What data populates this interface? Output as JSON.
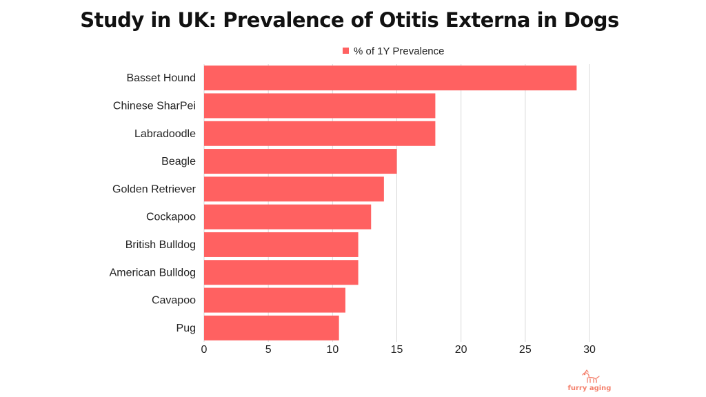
{
  "title": "Study in UK: Prevalence of Otitis Externa in Dogs",
  "brand": {
    "name": "furry aging",
    "color": "#f4806c",
    "icon": "dog-icon"
  },
  "chart_data": {
    "type": "bar",
    "orientation": "horizontal",
    "title": "Study in UK: Prevalence of Otitis Externa in Dogs",
    "categories": [
      "Basset Hound",
      "Chinese SharPei",
      "Labradoodle",
      "Beagle",
      "Golden Retriever",
      "Cockapoo",
      "British Bulldog",
      "American Bulldog",
      "Cavapoo",
      "Pug"
    ],
    "series": [
      {
        "name": "% of 1Y Prevalence",
        "color": "#ff6161",
        "values": [
          29,
          18,
          18,
          15,
          14,
          13,
          12,
          12,
          11,
          10.5
        ]
      }
    ],
    "xlim": [
      0,
      30
    ],
    "xticks": [
      0,
      5,
      10,
      15,
      20,
      25,
      30
    ],
    "xlabel": "",
    "ylabel": "",
    "grid": "vertical",
    "legend": "top-center"
  }
}
